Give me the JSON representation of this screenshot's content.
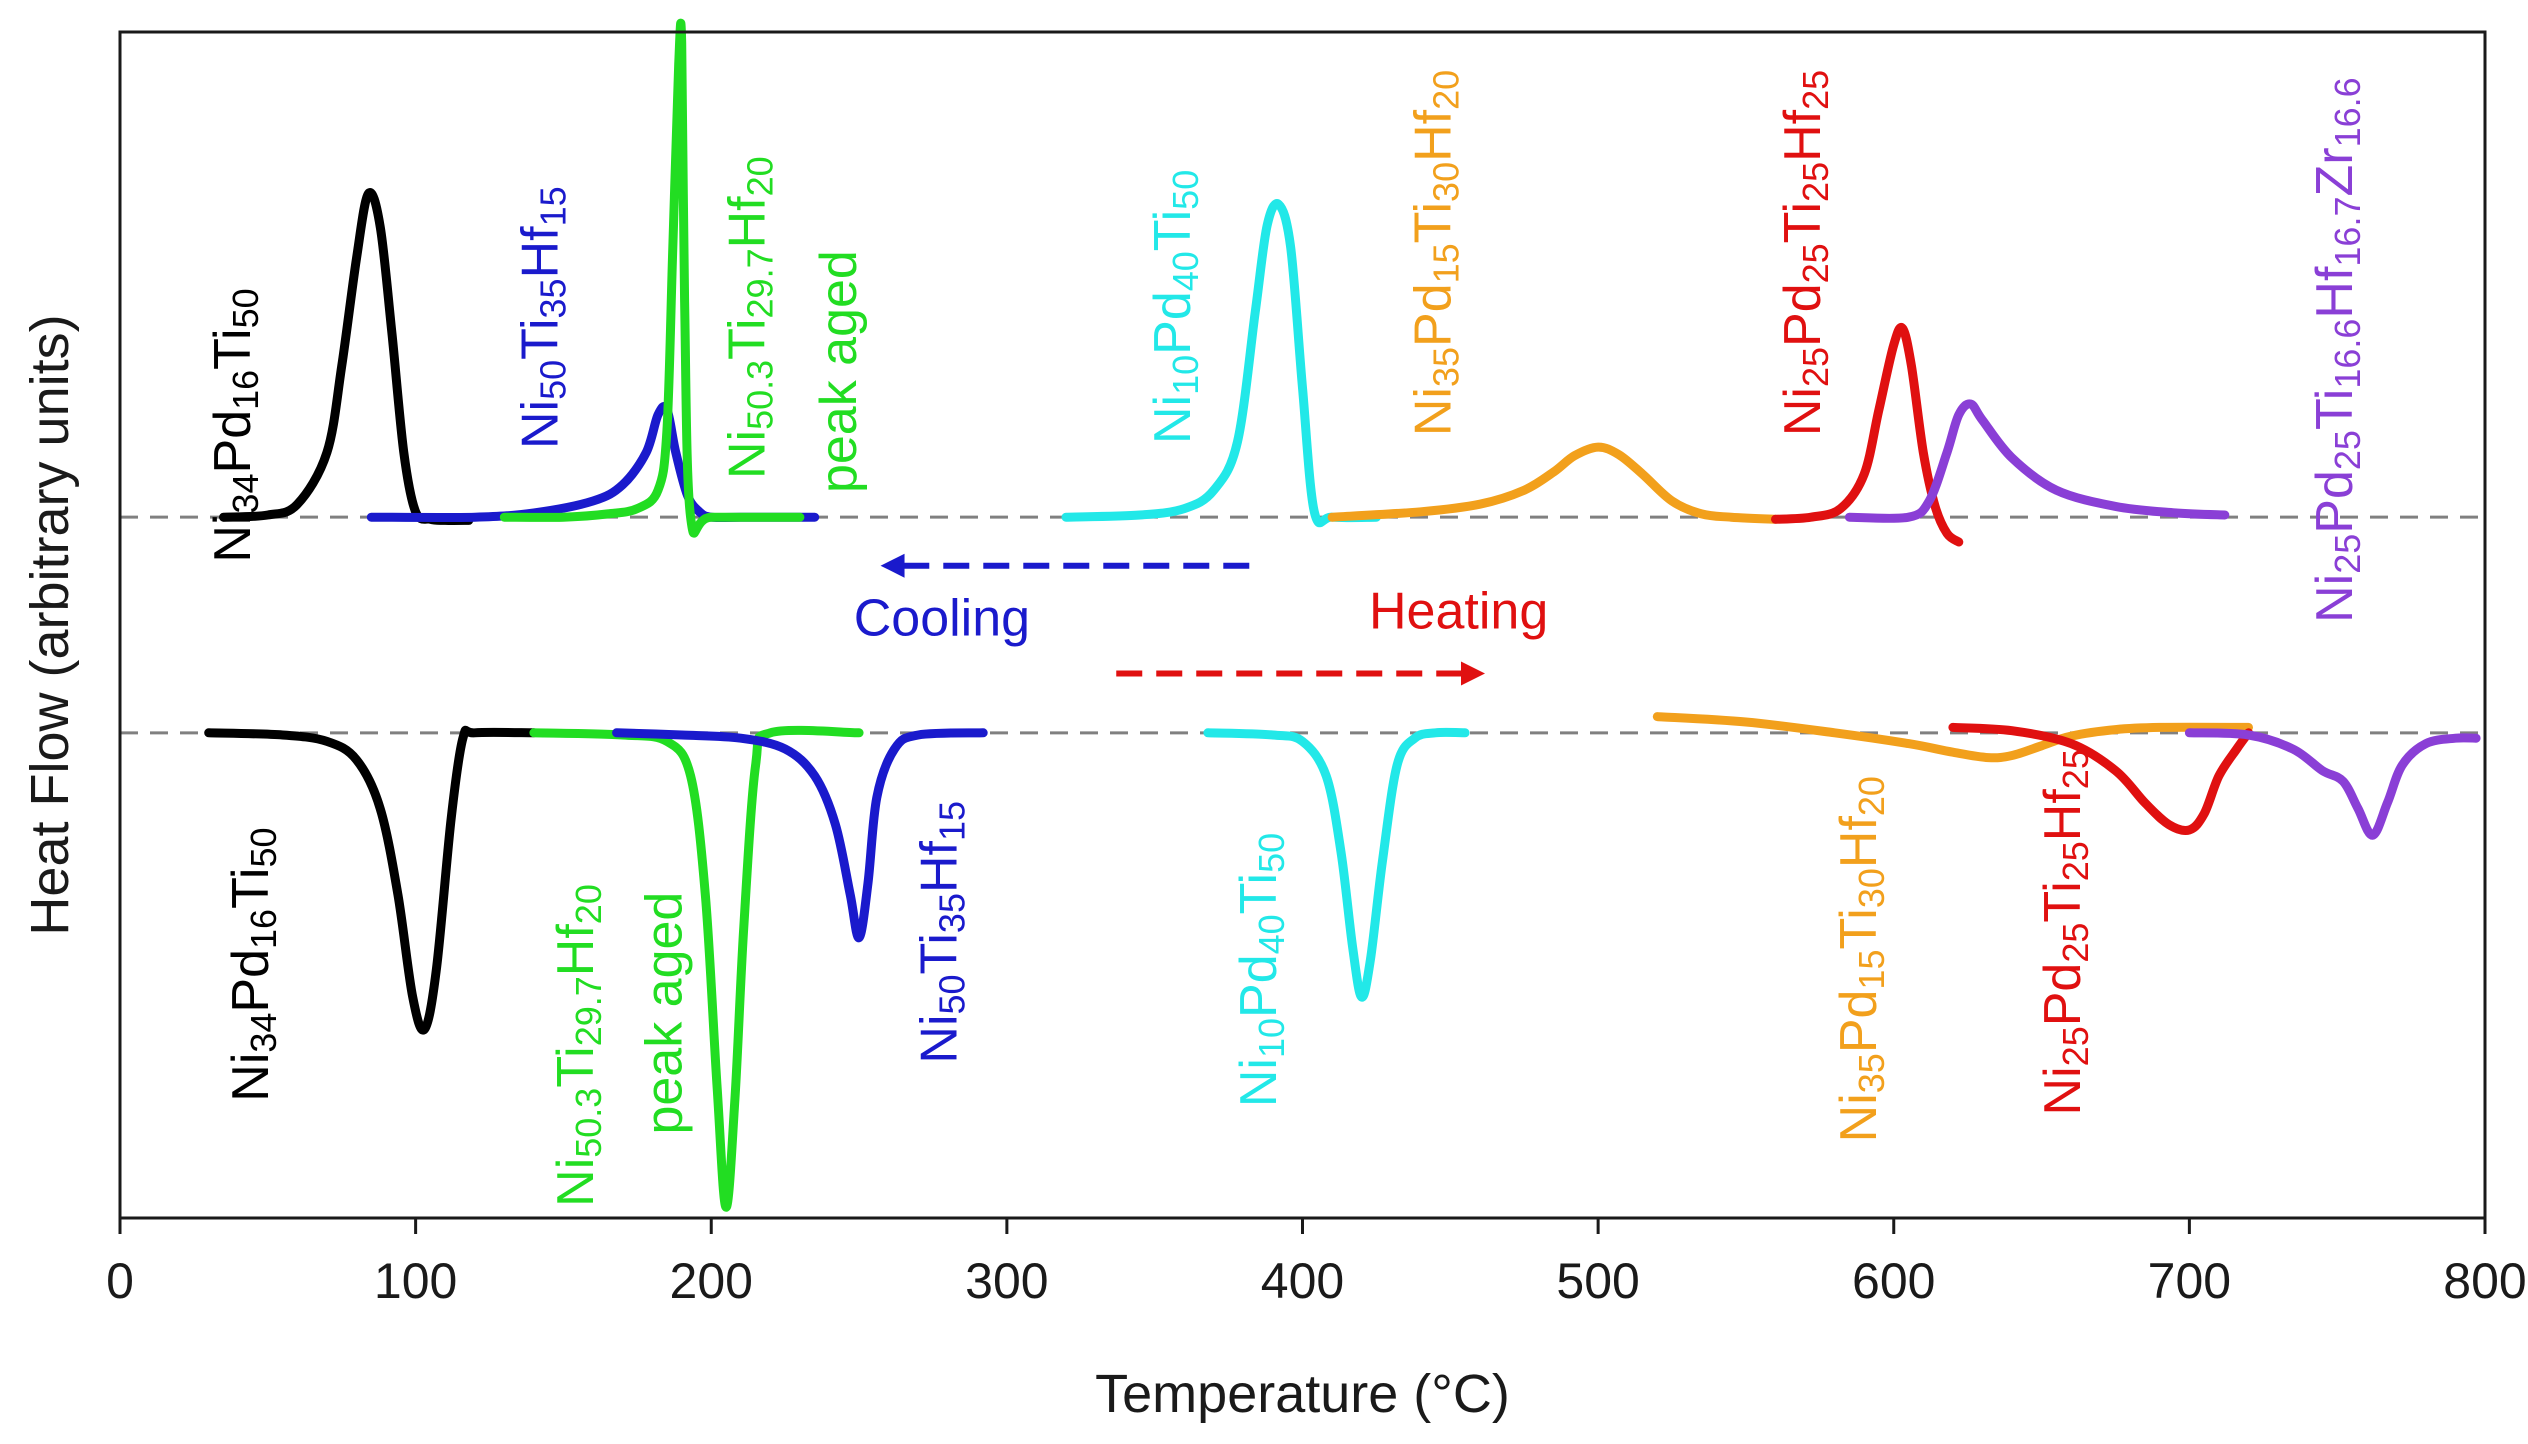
{
  "chart_data": {
    "type": "line",
    "title": "",
    "xlabel": "Temperature (°C)",
    "ylabel": "Heat Flow (arbitrary units)",
    "xlim": [
      0,
      800
    ],
    "xticks": [
      0,
      100,
      200,
      300,
      400,
      500,
      600,
      700,
      800
    ],
    "baselines": {
      "cooling": 1.0,
      "heating": -1.0,
      "style": "dashed",
      "color": "#808080"
    },
    "colors": {
      "black": "#000000",
      "blue": "#1a1acc",
      "green": "#22dd22",
      "cyan": "#22e8e8",
      "orange": "#f2a01c",
      "red": "#e01010",
      "purple": "#8a3fd6"
    },
    "series": [
      {
        "color": "black",
        "mode": "cooling",
        "x": [
          35,
          50,
          60,
          70,
          75,
          80,
          84,
          88,
          92,
          96,
          100,
          105,
          110,
          118
        ],
        "y": [
          1.0,
          1.02,
          1.12,
          1.6,
          2.4,
          3.4,
          4.0,
          3.7,
          2.7,
          1.6,
          1.05,
          0.98,
          0.97,
          0.97
        ]
      },
      {
        "color": "blue",
        "mode": "cooling",
        "x": [
          85,
          120,
          140,
          160,
          170,
          178,
          182,
          185,
          188,
          192,
          196,
          200,
          210,
          235
        ],
        "y": [
          1.0,
          1.0,
          1.04,
          1.15,
          1.3,
          1.6,
          1.95,
          2.0,
          1.6,
          1.2,
          1.05,
          1.0,
          1.0,
          1.0
        ]
      },
      {
        "color": "green",
        "mode": "cooling",
        "x": [
          130,
          150,
          165,
          175,
          182,
          185,
          187,
          189,
          190,
          191,
          193,
          200,
          230
        ],
        "y": [
          1.0,
          1.0,
          1.03,
          1.08,
          1.25,
          1.8,
          3.5,
          5.2,
          5.4,
          3.0,
          1.0,
          1.0,
          1.0
        ]
      },
      {
        "color": "cyan",
        "mode": "cooling",
        "x": [
          320,
          345,
          360,
          370,
          378,
          384,
          388,
          392,
          396,
          400,
          404,
          410,
          425
        ],
        "y": [
          1.0,
          1.02,
          1.08,
          1.25,
          1.7,
          2.9,
          3.7,
          3.9,
          3.5,
          2.2,
          1.05,
          1.0,
          1.0
        ]
      },
      {
        "color": "orange",
        "mode": "cooling",
        "x": [
          410,
          440,
          460,
          475,
          485,
          492,
          500,
          507,
          515,
          525,
          535,
          545,
          560
        ],
        "y": [
          1.0,
          1.05,
          1.12,
          1.25,
          1.42,
          1.57,
          1.65,
          1.58,
          1.4,
          1.15,
          1.03,
          1.0,
          0.98
        ]
      },
      {
        "color": "red",
        "mode": "cooling",
        "x": [
          560,
          572,
          582,
          590,
          595,
          600,
          603,
          606,
          610,
          614,
          618,
          622
        ],
        "y": [
          0.98,
          1.0,
          1.08,
          1.4,
          2.0,
          2.6,
          2.75,
          2.4,
          1.6,
          1.1,
          0.85,
          0.77
        ]
      },
      {
        "color": "purple",
        "mode": "cooling",
        "x": [
          585,
          605,
          612,
          618,
          622,
          626,
          630,
          640,
          655,
          675,
          695,
          712
        ],
        "y": [
          1.0,
          1.0,
          1.15,
          1.6,
          1.95,
          2.05,
          1.9,
          1.55,
          1.25,
          1.1,
          1.04,
          1.02
        ]
      },
      {
        "color": "black",
        "mode": "heating",
        "x": [
          30,
          55,
          70,
          80,
          88,
          94,
          99,
          103,
          107,
          112,
          116,
          120,
          140
        ],
        "y": [
          -1.0,
          -1.02,
          -1.08,
          -1.25,
          -1.7,
          -2.5,
          -3.45,
          -3.75,
          -3.2,
          -1.8,
          -1.05,
          -1.0,
          -1.0
        ]
      },
      {
        "color": "green",
        "mode": "heating",
        "x": [
          140,
          170,
          185,
          193,
          198,
          202,
          205,
          208,
          211,
          215,
          220,
          250
        ],
        "y": [
          -1.0,
          -1.02,
          -1.08,
          -1.4,
          -2.5,
          -4.3,
          -5.4,
          -4.4,
          -2.8,
          -1.3,
          -1.0,
          -1.0
        ]
      },
      {
        "color": "blue",
        "mode": "heating",
        "x": [
          168,
          190,
          210,
          225,
          235,
          242,
          247,
          250,
          253,
          256,
          262,
          270,
          292
        ],
        "y": [
          -1.0,
          -1.02,
          -1.05,
          -1.15,
          -1.4,
          -1.85,
          -2.5,
          -2.9,
          -2.4,
          -1.6,
          -1.15,
          -1.02,
          -1.0
        ]
      },
      {
        "color": "cyan",
        "mode": "heating",
        "x": [
          368,
          390,
          400,
          408,
          413,
          417,
          420,
          423,
          427,
          432,
          438,
          445,
          455
        ],
        "y": [
          -1.0,
          -1.02,
          -1.08,
          -1.4,
          -2.1,
          -3.0,
          -3.45,
          -3.1,
          -2.2,
          -1.3,
          -1.05,
          -1.0,
          -1.0
        ]
      },
      {
        "color": "orange",
        "mode": "heating",
        "x": [
          520,
          550,
          580,
          605,
          620,
          632,
          640,
          650,
          660,
          675,
          690,
          720
        ],
        "y": [
          -0.85,
          -0.9,
          -1.0,
          -1.1,
          -1.18,
          -1.23,
          -1.21,
          -1.12,
          -1.03,
          -0.97,
          -0.95,
          -0.95
        ]
      },
      {
        "color": "red",
        "mode": "heating",
        "x": [
          620,
          640,
          660,
          675,
          685,
          693,
          700,
          705,
          710,
          716,
          720
        ],
        "y": [
          -0.95,
          -0.98,
          -1.1,
          -1.35,
          -1.65,
          -1.85,
          -1.9,
          -1.75,
          -1.4,
          -1.15,
          -1.0
        ]
      },
      {
        "color": "purple",
        "mode": "heating",
        "x": [
          700,
          720,
          735,
          745,
          752,
          757,
          762,
          767,
          772,
          780,
          790,
          797
        ],
        "y": [
          -1.0,
          -1.02,
          -1.15,
          -1.35,
          -1.45,
          -1.7,
          -1.95,
          -1.65,
          -1.3,
          -1.1,
          -1.05,
          -1.05
        ]
      }
    ],
    "arrows": [
      {
        "label": "Cooling",
        "color": "#1a1acc",
        "direction": "left",
        "x_from": 382,
        "x_to": 262,
        "y": 0.55
      },
      {
        "label": "Heating",
        "color": "#e01010",
        "direction": "right",
        "x_from": 337,
        "x_to": 457,
        "y": -0.45
      }
    ],
    "labels": [
      {
        "color": "black",
        "x": 44,
        "y": 1.85,
        "parts": [
          [
            "Ni",
            ""
          ],
          [
            "34",
            "sub"
          ],
          [
            "Pd",
            ""
          ],
          [
            "16",
            "sub"
          ],
          [
            "Ti",
            ""
          ],
          [
            "50",
            "sub"
          ]
        ]
      },
      {
        "color": "blue",
        "x": 148,
        "y": 2.85,
        "parts": [
          [
            "Ni",
            ""
          ],
          [
            "50",
            "sub"
          ],
          [
            "Ti",
            ""
          ],
          [
            "35",
            "sub"
          ],
          [
            "Hf",
            ""
          ],
          [
            "15",
            "sub"
          ]
        ]
      },
      {
        "color": "green",
        "x": 218,
        "y": 2.85,
        "parts": [
          [
            "Ni",
            ""
          ],
          [
            "50.3",
            "sub"
          ],
          [
            "Ti",
            ""
          ],
          [
            "29.7",
            "sub"
          ],
          [
            "Hf",
            ""
          ],
          [
            "20",
            "sub"
          ]
        ]
      },
      {
        "color": "green",
        "x": 249,
        "y": 2.35,
        "parts": [
          [
            "peak aged",
            ""
          ]
        ]
      },
      {
        "color": "cyan",
        "x": 362,
        "y": 2.95,
        "parts": [
          [
            "Ni",
            ""
          ],
          [
            "10",
            "sub"
          ],
          [
            "Pd",
            ""
          ],
          [
            "40",
            "sub"
          ],
          [
            "Ti",
            ""
          ],
          [
            "50",
            "sub"
          ]
        ]
      },
      {
        "color": "orange",
        "x": 450,
        "y": 3.45,
        "parts": [
          [
            "Ni",
            ""
          ],
          [
            "35",
            "sub"
          ],
          [
            "Pd",
            ""
          ],
          [
            "15",
            "sub"
          ],
          [
            "Ti",
            ""
          ],
          [
            "30",
            "sub"
          ],
          [
            "Hf",
            ""
          ],
          [
            "20",
            "sub"
          ]
        ]
      },
      {
        "color": "red",
        "x": 575,
        "y": 3.45,
        "parts": [
          [
            "Ni",
            ""
          ],
          [
            "25",
            "sub"
          ],
          [
            "Pd",
            ""
          ],
          [
            "25",
            "sub"
          ],
          [
            "Ti",
            ""
          ],
          [
            "25",
            "sub"
          ],
          [
            "Hf",
            ""
          ],
          [
            "25",
            "sub"
          ]
        ]
      },
      {
        "color": "purple",
        "x": 755,
        "y": 2.55,
        "parts": [
          [
            "Ni",
            ""
          ],
          [
            "25",
            "sub"
          ],
          [
            "Pd",
            ""
          ],
          [
            "25",
            "sub"
          ],
          [
            "Ti",
            ""
          ],
          [
            "16.6",
            "sub"
          ],
          [
            "Hf",
            ""
          ],
          [
            "16.7",
            "sub"
          ],
          [
            "Zr",
            ""
          ],
          [
            "16.6",
            "sub"
          ]
        ]
      },
      {
        "color": "black",
        "x": 50,
        "y": -3.15,
        "parts": [
          [
            "Ni",
            ""
          ],
          [
            "34",
            "sub"
          ],
          [
            "Pd",
            ""
          ],
          [
            "16",
            "sub"
          ],
          [
            "Ti",
            ""
          ],
          [
            "50",
            "sub"
          ]
        ]
      },
      {
        "color": "green",
        "x": 160,
        "y": -3.9,
        "parts": [
          [
            "Ni",
            ""
          ],
          [
            "50.3",
            "sub"
          ],
          [
            "Ti",
            ""
          ],
          [
            "29.7",
            "sub"
          ],
          [
            "Hf",
            ""
          ],
          [
            "20",
            "sub"
          ]
        ]
      },
      {
        "color": "green",
        "x": 190,
        "y": -3.6,
        "parts": [
          [
            "peak aged",
            ""
          ]
        ]
      },
      {
        "color": "blue",
        "x": 283,
        "y": -2.85,
        "parts": [
          [
            "Ni",
            ""
          ],
          [
            "50",
            "sub"
          ],
          [
            "Ti",
            ""
          ],
          [
            "35",
            "sub"
          ],
          [
            "Hf",
            ""
          ],
          [
            "15",
            "sub"
          ]
        ]
      },
      {
        "color": "cyan",
        "x": 391,
        "y": -3.2,
        "parts": [
          [
            "Ni",
            ""
          ],
          [
            "10",
            "sub"
          ],
          [
            "Pd",
            ""
          ],
          [
            "40",
            "sub"
          ],
          [
            "Ti",
            ""
          ],
          [
            "50",
            "sub"
          ]
        ]
      },
      {
        "color": "orange",
        "x": 594,
        "y": -3.1,
        "parts": [
          [
            "Ni",
            ""
          ],
          [
            "35",
            "sub"
          ],
          [
            "Pd",
            ""
          ],
          [
            "15",
            "sub"
          ],
          [
            "Ti",
            ""
          ],
          [
            "30",
            "sub"
          ],
          [
            "Hf",
            ""
          ],
          [
            "20",
            "sub"
          ]
        ]
      },
      {
        "color": "red",
        "x": 663,
        "y": -2.85,
        "parts": [
          [
            "Ni",
            ""
          ],
          [
            "25",
            "sub"
          ],
          [
            "Pd",
            ""
          ],
          [
            "25",
            "sub"
          ],
          [
            "Ti",
            ""
          ],
          [
            "25",
            "sub"
          ],
          [
            "Hf",
            ""
          ],
          [
            "25",
            "sub"
          ]
        ]
      }
    ]
  }
}
